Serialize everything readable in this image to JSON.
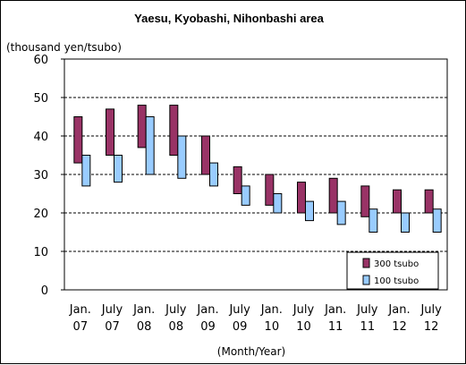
{
  "chart_data": {
    "type": "bar",
    "title": "Yaesu, Kyobashi, Nihonbashi area",
    "unit_label": "(thousand yen/tsubo)",
    "xlabel": "(Month/Year)",
    "ylim": [
      0,
      60
    ],
    "yticks": [
      0,
      10,
      20,
      30,
      40,
      50,
      60
    ],
    "grid": "horizontal-dashed",
    "legend_position": "bottom-right",
    "categories": [
      [
        "Jan.",
        "07"
      ],
      [
        "July",
        "07"
      ],
      [
        "Jan.",
        "08"
      ],
      [
        "July",
        "08"
      ],
      [
        "Jan.",
        "09"
      ],
      [
        "July",
        "09"
      ],
      [
        "Jan.",
        "10"
      ],
      [
        "July",
        "10"
      ],
      [
        "Jan.",
        "11"
      ],
      [
        "July",
        "11"
      ],
      [
        "Jan.",
        "12"
      ],
      [
        "July",
        "12"
      ]
    ],
    "series": [
      {
        "name": "300 tsubo",
        "color": "#993366",
        "ranges": [
          [
            33,
            45
          ],
          [
            35,
            47
          ],
          [
            37,
            48
          ],
          [
            35,
            48
          ],
          [
            30,
            40
          ],
          [
            25,
            32
          ],
          [
            22,
            30
          ],
          [
            20,
            28
          ],
          [
            20,
            29
          ],
          [
            19,
            27
          ],
          [
            20,
            26
          ],
          [
            20,
            26
          ]
        ]
      },
      {
        "name": "100 tsubo",
        "color": "#99CCFF",
        "ranges": [
          [
            27,
            35
          ],
          [
            28,
            35
          ],
          [
            30,
            45
          ],
          [
            29,
            40
          ],
          [
            27,
            33
          ],
          [
            22,
            27
          ],
          [
            20,
            25
          ],
          [
            18,
            23
          ],
          [
            17,
            23
          ],
          [
            15,
            21
          ],
          [
            15,
            20
          ],
          [
            15,
            21
          ]
        ]
      }
    ]
  }
}
